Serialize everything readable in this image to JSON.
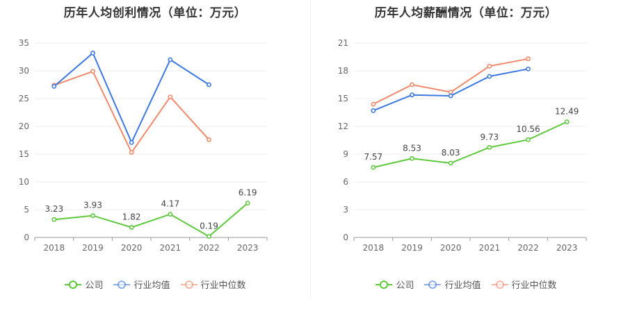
{
  "colors": {
    "company": "#5cc83a",
    "industry_avg": "#3b78e0",
    "industry_median": "#f0896a",
    "grid": "#ececec",
    "axis": "#999999",
    "tick_text": "#666666",
    "label_text": "#444444"
  },
  "chart_data": [
    {
      "type": "line",
      "title": "历年人均创利情况（单位：万元）",
      "categories": [
        "2018",
        "2019",
        "2020",
        "2021",
        "2022",
        "2023"
      ],
      "ylim": [
        0,
        35
      ],
      "yticks": [
        0,
        5,
        10,
        15,
        20,
        25,
        30,
        35
      ],
      "grid": true,
      "legend_position": "bottom",
      "series": [
        {
          "name": "公司",
          "key": "company",
          "values": [
            3.23,
            3.93,
            1.82,
            4.17,
            0.19,
            6.19
          ],
          "labels": [
            "3.23",
            "3.93",
            "1.82",
            "4.17",
            "0.19",
            "6.19"
          ]
        },
        {
          "name": "行业均值",
          "key": "industry_avg",
          "values": [
            27.2,
            33.2,
            17.1,
            32.0,
            27.5,
            null
          ]
        },
        {
          "name": "行业中位数",
          "key": "industry_median",
          "values": [
            27.4,
            29.9,
            15.3,
            25.3,
            17.6,
            null
          ]
        }
      ]
    },
    {
      "type": "line",
      "title": "历年人均薪酬情况（单位：万元）",
      "categories": [
        "2018",
        "2019",
        "2020",
        "2021",
        "2022",
        "2023"
      ],
      "ylim": [
        0,
        21
      ],
      "yticks": [
        0,
        3,
        6,
        9,
        12,
        15,
        18,
        21
      ],
      "grid": true,
      "legend_position": "bottom",
      "series": [
        {
          "name": "公司",
          "key": "company",
          "values": [
            7.57,
            8.53,
            8.03,
            9.73,
            10.56,
            12.49
          ],
          "labels": [
            "7.57",
            "8.53",
            "8.03",
            "9.73",
            "10.56",
            "12.49"
          ]
        },
        {
          "name": "行业均值",
          "key": "industry_avg",
          "values": [
            13.7,
            15.4,
            15.3,
            17.4,
            18.2,
            null
          ]
        },
        {
          "name": "行业中位数",
          "key": "industry_median",
          "values": [
            14.4,
            16.5,
            15.7,
            18.5,
            19.3,
            null
          ]
        }
      ]
    }
  ],
  "legend": [
    {
      "key": "company",
      "label": "公司"
    },
    {
      "key": "industry_avg",
      "label": "行业均值"
    },
    {
      "key": "industry_median",
      "label": "行业中位数"
    }
  ]
}
